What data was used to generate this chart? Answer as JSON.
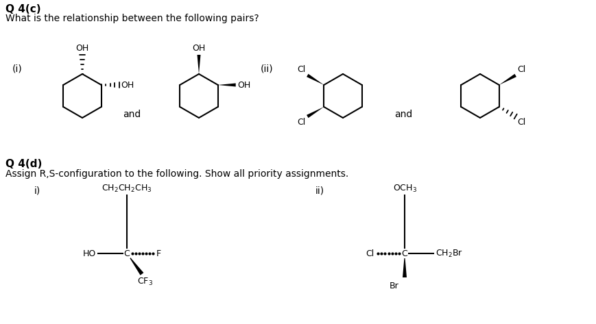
{
  "title_c": "Q 4(c)",
  "subtitle_c": "What is the relationship between the following pairs?",
  "title_d": "Q 4(d)",
  "subtitle_d": "Assign R,S-configuration to the following. Show all priority assignments.",
  "bg_color": "#ffffff",
  "text_color": "#000000",
  "fs_title": 11,
  "fs_body": 10,
  "fs_label": 9,
  "fs_small": 8.5
}
